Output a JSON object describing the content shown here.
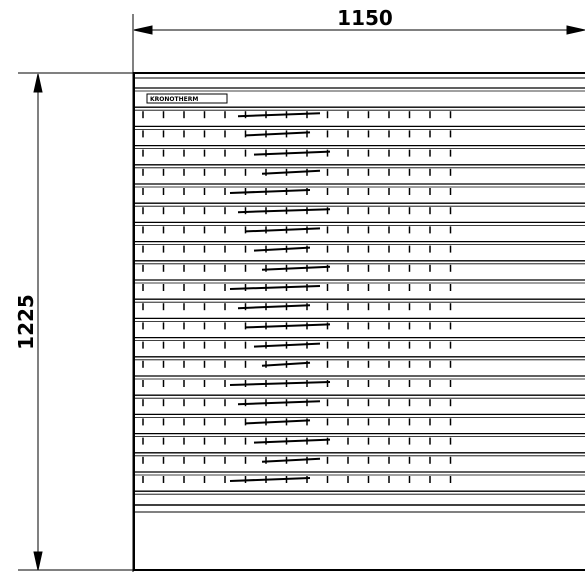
{
  "dimensions": {
    "width": "1150",
    "height": "1225"
  },
  "label": "KRONOTHERM"
}
